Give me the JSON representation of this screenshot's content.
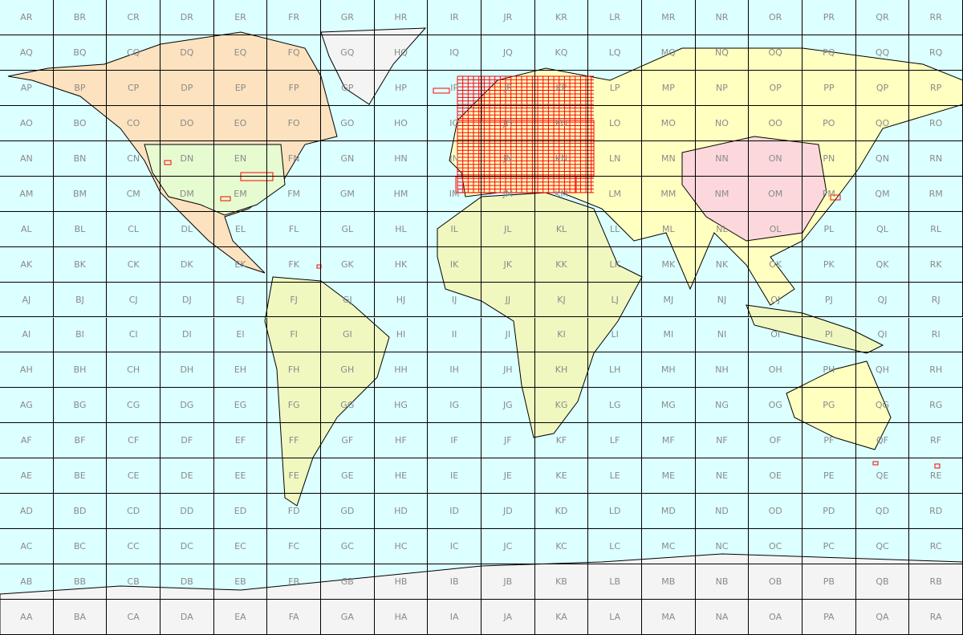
{
  "map": {
    "type": "Maidenhead locator field grid",
    "columns": [
      "A",
      "B",
      "C",
      "D",
      "E",
      "F",
      "G",
      "H",
      "I",
      "J",
      "K",
      "L",
      "M",
      "N",
      "O",
      "P",
      "Q",
      "R"
    ],
    "rows": [
      "R",
      "Q",
      "P",
      "O",
      "N",
      "M",
      "L",
      "K",
      "J",
      "I",
      "H",
      "G",
      "F",
      "E",
      "D",
      "C",
      "B",
      "A"
    ],
    "labels": [],
    "colors": {
      "ocean": "#dcffff",
      "grid": "#000000",
      "label": "#8a8a8a",
      "worked_square": "#ff0000",
      "ice": "#f4f4f4"
    }
  }
}
